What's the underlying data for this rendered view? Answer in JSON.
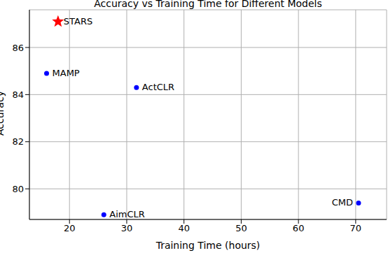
{
  "chart_data": {
    "type": "scatter",
    "title": "Accuracy vs Training Time for Different Models",
    "x_label": "Training Time (hours)",
    "y_label": "Accuracy",
    "x": [
      18,
      16,
      31.7,
      26,
      70.5
    ],
    "values": [
      87.1,
      84.9,
      84.3,
      78.9,
      79.4
    ],
    "point_labels": [
      "STARS",
      "MAMP",
      "ActCLR",
      "AimCLR",
      "CMD"
    ],
    "colors": [
      "#ff0000",
      "#0000ff",
      "#0000ff",
      "#0000ff",
      "#0000ff"
    ],
    "markers": [
      "star",
      "circle",
      "circle",
      "circle",
      "circle"
    ],
    "xlim": [
      13,
      75.4
    ],
    "ylim": [
      78.7,
      87.6
    ],
    "xticks": [
      20,
      30,
      40,
      50,
      60,
      70
    ],
    "yticks": [
      80,
      82,
      84,
      86
    ],
    "grid": true
  }
}
